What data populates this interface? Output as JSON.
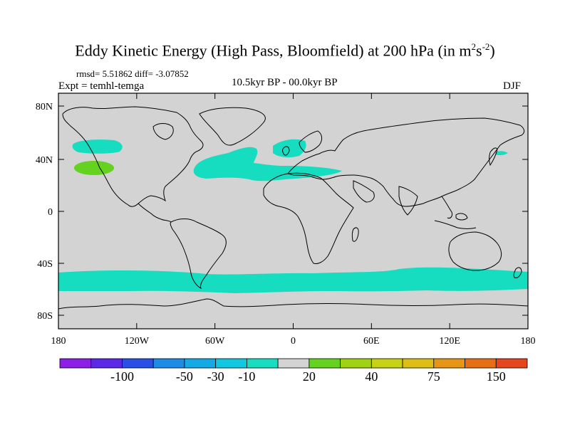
{
  "title": {
    "main": "Eddy Kinetic Energy (High Pass, Bloomfield) at 200 hPa (in m",
    "sup1": "2",
    "mid": "s",
    "sup2": "-2",
    "close": ")"
  },
  "stats_line": "rmsd= 5.51862  diff= -3.07852",
  "expt_line": "Expt = temhl-temga",
  "subtitle": "10.5kyr BP - 00.0kyr BP",
  "season": "DJF",
  "map": {
    "land_color": "#d3d3d3",
    "coast_color": "#000000",
    "lat_labels": [
      "80N",
      "40N",
      "0",
      "40S",
      "80S"
    ],
    "lon_labels": [
      "180",
      "120W",
      "60W",
      "0",
      "60E",
      "120E",
      "180"
    ]
  },
  "legend": {
    "colors": [
      "#8c1ee6",
      "#5a28e6",
      "#2850e6",
      "#1e8ce6",
      "#14aae6",
      "#10c8e0",
      "#16dcc0",
      "#d3d3d3",
      "#64d21e",
      "#a0d214",
      "#c8d214",
      "#dcbe14",
      "#e69614",
      "#e66e14",
      "#e6461e"
    ],
    "labels": [
      "-100",
      "-50",
      "-30",
      "-10",
      "20",
      "40",
      "75",
      "150"
    ]
  },
  "field_colors": {
    "negative": "#16dcc0",
    "positive": "#64d21e"
  }
}
